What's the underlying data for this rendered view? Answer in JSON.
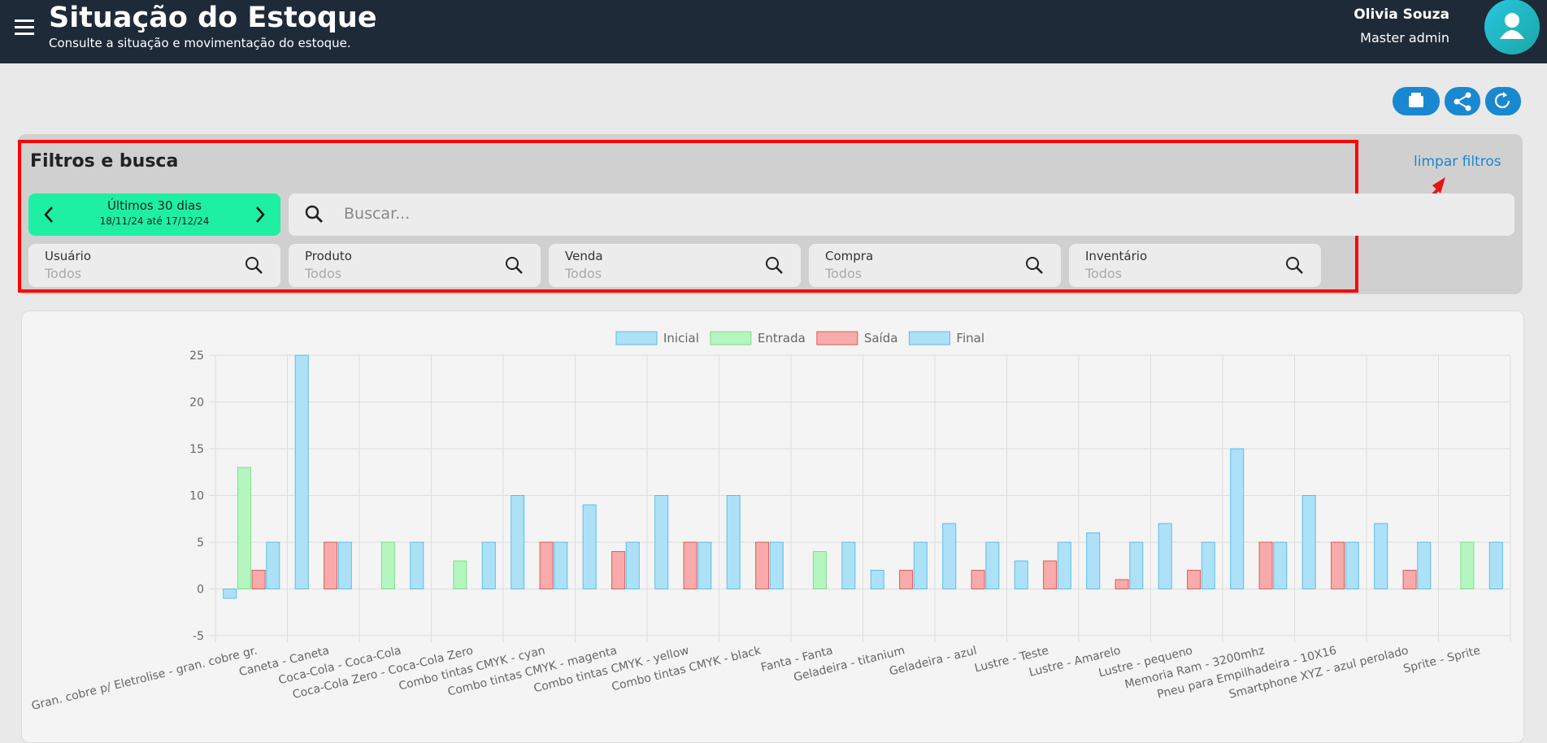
{
  "header": {
    "title": "Situação do Estoque",
    "subtitle": "Consulte a situação e movimentação do estoque.",
    "user_name": "Olivia Souza",
    "user_role": "Master admin"
  },
  "filters": {
    "title": "Filtros e busca",
    "clear": "limpar filtros",
    "period": {
      "label": "Últimos 30 dias",
      "range": "18/11/24 até 17/12/24"
    },
    "search_placeholder": "Buscar...",
    "fields": [
      {
        "label": "Usuário",
        "value": "Todos"
      },
      {
        "label": "Produto",
        "value": "Todos"
      },
      {
        "label": "Venda",
        "value": "Todos"
      },
      {
        "label": "Compra",
        "value": "Todos"
      },
      {
        "label": "Inventário",
        "value": "Todos"
      }
    ]
  },
  "chart_data": {
    "type": "bar",
    "grid": true,
    "ylim": [
      -5,
      25
    ],
    "yticks": [
      -5,
      0,
      5,
      10,
      15,
      20,
      25
    ],
    "legend": "top",
    "categories": [
      "Gran. cobre p/ Eletrolise - gran. cobre gr.",
      "Caneta - Caneta",
      "Coca-Cola - Coca-Cola",
      "Coca-Cola Zero - Coca-Cola Zero",
      "Combo tintas CMYK - cyan",
      "Combo tintas CMYK - magenta",
      "Combo tintas CMYK - yellow",
      "Combo tintas CMYK - black",
      "Fanta - Fanta",
      "Geladeira - titanium",
      "Geladeira - azul",
      "Lustre - Teste",
      "Lustre - Amarelo",
      "Lustre - pequeno",
      "Memoria Ram - 3200mhz",
      "Pneu para Empilhadeira - 10X16",
      "Smartphone XYZ - azul perolado",
      "Sprite - Sprite"
    ],
    "series": [
      {
        "name": "Inicial",
        "color": "#ade1f7",
        "border_color": "#5bbfe8",
        "values": [
          -1,
          25,
          0,
          0,
          10,
          9,
          10,
          10,
          0,
          2,
          7,
          3,
          6,
          7,
          15,
          10,
          7,
          0
        ]
      },
      {
        "name": "Entrada",
        "color": "#b5f5c0",
        "border_color": "#7ddf8c",
        "values": [
          13,
          0,
          5,
          3,
          0,
          0,
          0,
          0,
          4,
          0,
          0,
          0,
          0,
          0,
          0,
          0,
          0,
          5
        ]
      },
      {
        "name": "Saída",
        "color": "#f7abab",
        "border_color": "#e05a5a",
        "values": [
          2,
          5,
          0,
          0,
          5,
          4,
          5,
          5,
          0,
          2,
          2,
          3,
          1,
          2,
          5,
          5,
          2,
          0
        ]
      },
      {
        "name": "Final",
        "color": "#ade1f7",
        "border_color": "#5bbfe8",
        "values": [
          5,
          5,
          5,
          5,
          5,
          5,
          5,
          5,
          5,
          5,
          5,
          5,
          5,
          5,
          5,
          5,
          5,
          5
        ]
      }
    ]
  }
}
